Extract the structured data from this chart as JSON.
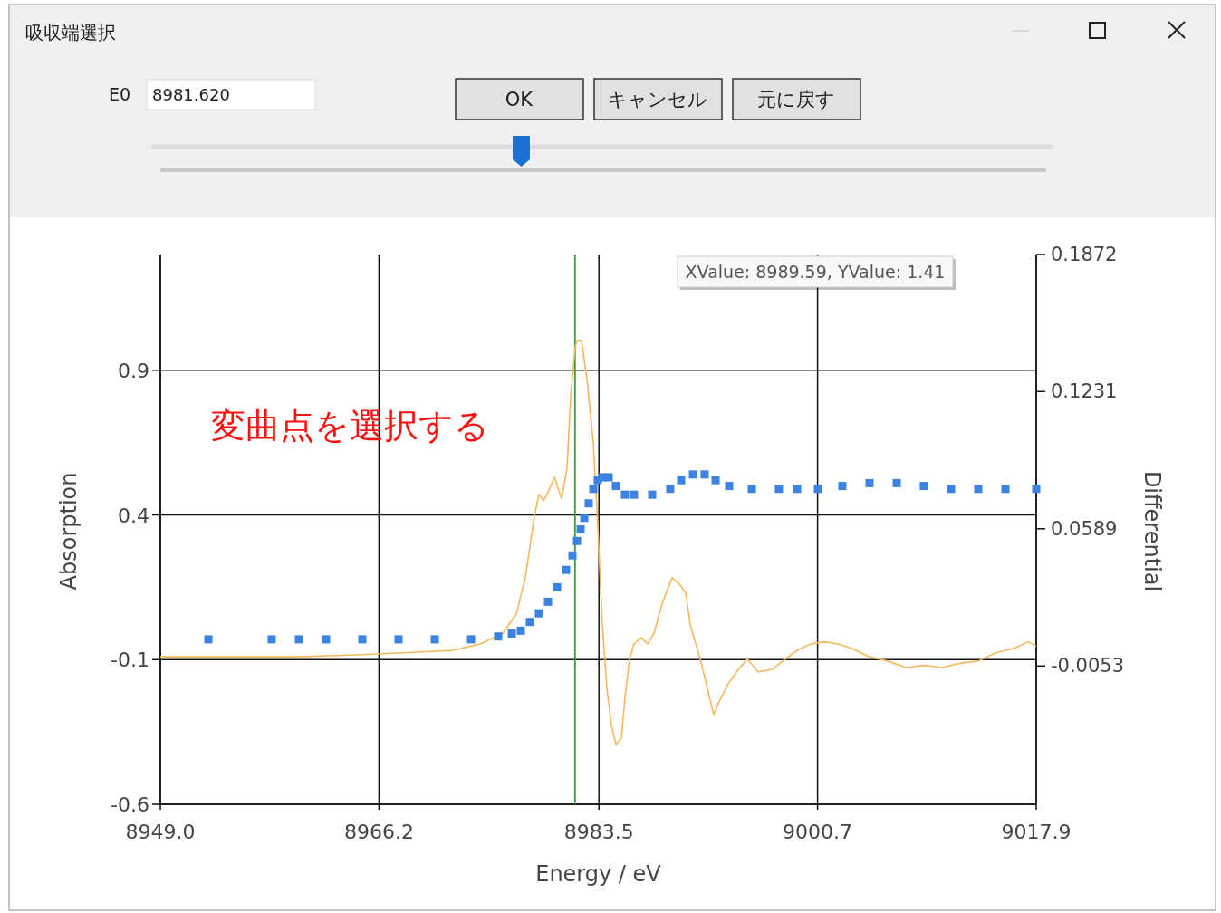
{
  "chart_data": {
    "type": "scatter",
    "title": "吸収端選択",
    "xlabel": "Energy / eV",
    "ylabel": "Absorption",
    "y2label": "Differential",
    "annotations": [
      "変曲点を選択する",
      "XValue: 8989.59, YValue: 1.41",
      "E0",
      "8981.620",
      "OK",
      "キャンセル",
      "元に戻す"
    ],
    "xlim": [
      8949.0,
      9017.9
    ],
    "xticks": [
      {
        "value": 8949.0,
        "label": "8949.0"
      },
      {
        "value": 8966.2,
        "label": "8966.2"
      },
      {
        "value": 8983.5,
        "label": "8983.5"
      },
      {
        "value": 9000.7,
        "label": "9000.7"
      },
      {
        "value": 9017.9,
        "label": "9017.9"
      }
    ],
    "ylim": [
      -0.6,
      1.3
    ],
    "yticks": [
      -0.6,
      -0.1,
      0.4,
      0.9
    ],
    "y2lim": [
      -0.07,
      0.1872
    ],
    "y2ticks": [
      -0.0053,
      0.0589,
      0.1231,
      0.1872
    ],
    "grid": true,
    "ref_lines": [
      {
        "axis": "x",
        "value": 8981.62,
        "color": "#3c9a3c"
      }
    ],
    "series": [
      {
        "marker": "square",
        "color": "#3c82e0",
        "x": [
          8952.78,
          8957.76,
          8959.9,
          8962.04,
          8964.89,
          8967.74,
          8970.59,
          8973.44,
          8975.58,
          8976.65,
          8977.36,
          8978.07,
          8978.78,
          8979.5,
          8980.21,
          8980.92,
          8981.42,
          8981.78,
          8982.06,
          8982.35,
          8982.7,
          8983.06,
          8983.41,
          8983.77,
          8984.27,
          8984.84,
          8985.55,
          8986.26,
          8987.69,
          8989.11,
          8989.97,
          8990.9,
          8991.82,
          8992.68,
          8993.75,
          8995.53,
          8997.66,
          8999.09,
          9000.73,
          9002.65,
          9004.79,
          9006.93,
          9009.06,
          9011.2,
          9013.34,
          9015.48,
          9017.9
        ],
        "values": [
          -0.03,
          -0.03,
          -0.03,
          -0.03,
          -0.03,
          -0.03,
          -0.03,
          -0.03,
          -0.02,
          -0.01,
          0.0,
          0.03,
          0.06,
          0.1,
          0.15,
          0.21,
          0.26,
          0.31,
          0.35,
          0.39,
          0.44,
          0.49,
          0.52,
          0.53,
          0.53,
          0.5,
          0.47,
          0.47,
          0.47,
          0.49,
          0.52,
          0.54,
          0.54,
          0.52,
          0.5,
          0.49,
          0.49,
          0.49,
          0.49,
          0.5,
          0.51,
          0.51,
          0.5,
          0.49,
          0.49,
          0.49,
          0.49
        ]
      },
      {
        "type": "line",
        "axis": "y2",
        "color": "#f5b860",
        "x": [
          8949.0,
          8959.9,
          8964.89,
          8968.45,
          8972.01,
          8974.15,
          8975.93,
          8977.0,
          8977.71,
          8978.43,
          8978.78,
          8979.14,
          8979.5,
          8980.0,
          8980.56,
          8980.99,
          8981.28,
          8981.63,
          8981.78,
          8982.13,
          8982.56,
          8983.06,
          8983.41,
          8983.77,
          8984.13,
          8984.48,
          8984.84,
          8985.27,
          8985.55,
          8985.91,
          8986.26,
          8986.83,
          8987.33,
          8987.83,
          8988.54,
          8989.26,
          8989.83,
          8990.33,
          8990.68,
          8991.47,
          8992.53,
          8993.03,
          8993.74,
          8994.46,
          8995.17,
          8996.03,
          8997.09,
          8998.16,
          8999.09,
          9000.16,
          9001.23,
          9002.29,
          9003.36,
          9004.79,
          9006.21,
          9007.64,
          9009.06,
          9010.49,
          9011.91,
          9013.34,
          9014.76,
          9016.19,
          9017.26,
          9017.9
        ],
        "values": [
          -0.001,
          -0.001,
          0.0,
          0.001,
          0.002,
          0.005,
          0.01,
          0.019,
          0.036,
          0.065,
          0.075,
          0.072,
          0.076,
          0.083,
          0.073,
          0.087,
          0.121,
          0.144,
          0.147,
          0.147,
          0.129,
          0.099,
          0.061,
          0.014,
          -0.016,
          -0.033,
          -0.042,
          -0.039,
          -0.02,
          -0.002,
          0.005,
          0.008,
          0.005,
          0.01,
          0.025,
          0.036,
          0.033,
          0.029,
          0.014,
          -0.002,
          -0.028,
          -0.021,
          -0.013,
          -0.007,
          -0.002,
          -0.008,
          -0.007,
          -0.002,
          0.002,
          0.005,
          0.006,
          0.005,
          0.003,
          -0.001,
          -0.003,
          -0.006,
          -0.005,
          -0.006,
          -0.004,
          -0.003,
          0.001,
          0.003,
          0.006,
          0.004
        ]
      }
    ]
  }
}
